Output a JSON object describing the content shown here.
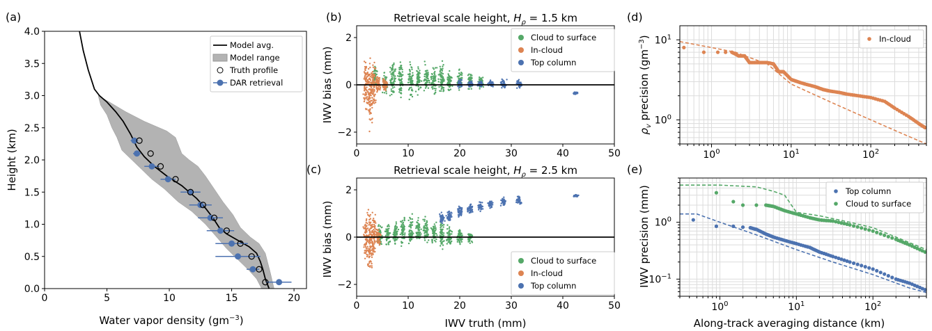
{
  "chart_data": [
    {
      "panel": "(a)",
      "type": "line",
      "title": "",
      "xlabel": "Water vapor density (gm",
      "xlabel_sup": "−3",
      "xlabel_end": ")",
      "ylabel": "Height (km)",
      "xlim": [
        0,
        21
      ],
      "ylim": [
        0,
        4
      ],
      "xticks": [
        0,
        5,
        10,
        15,
        20
      ],
      "yticks": [
        0.0,
        0.5,
        1.0,
        1.5,
        2.0,
        2.5,
        3.0,
        3.5,
        4.0
      ],
      "legend": [
        "Model avg.",
        "Model range",
        "Truth profile",
        "DAR retrieval"
      ],
      "legend_position": "top-right",
      "model_avg": [
        [
          2.8,
          4.0
        ],
        [
          3.1,
          3.7
        ],
        [
          3.5,
          3.4
        ],
        [
          4.0,
          3.1
        ],
        [
          4.4,
          3.0
        ],
        [
          5.0,
          2.9
        ],
        [
          5.7,
          2.75
        ],
        [
          6.3,
          2.6
        ],
        [
          6.9,
          2.4
        ],
        [
          7.4,
          2.2
        ],
        [
          8.0,
          2.05
        ],
        [
          8.8,
          1.9
        ],
        [
          9.8,
          1.75
        ],
        [
          11.0,
          1.6
        ],
        [
          12.2,
          1.4
        ],
        [
          12.9,
          1.25
        ],
        [
          13.5,
          1.1
        ],
        [
          14.0,
          0.95
        ],
        [
          14.6,
          0.85
        ],
        [
          15.5,
          0.75
        ],
        [
          16.4,
          0.65
        ],
        [
          17.0,
          0.55
        ],
        [
          17.3,
          0.42
        ],
        [
          17.5,
          0.3
        ],
        [
          17.7,
          0.15
        ],
        [
          18.0,
          0.0
        ]
      ],
      "model_range_upper": [
        [
          4.3,
          3.0
        ],
        [
          5.2,
          2.9
        ],
        [
          6.5,
          2.75
        ],
        [
          8.0,
          2.6
        ],
        [
          9.8,
          2.45
        ],
        [
          10.5,
          2.35
        ],
        [
          10.8,
          2.2
        ],
        [
          11.0,
          2.1
        ],
        [
          11.6,
          2.0
        ],
        [
          12.3,
          1.9
        ],
        [
          12.9,
          1.75
        ],
        [
          13.6,
          1.55
        ],
        [
          14.3,
          1.35
        ],
        [
          15.1,
          1.15
        ],
        [
          15.7,
          0.95
        ],
        [
          16.5,
          0.8
        ],
        [
          17.2,
          0.7
        ],
        [
          17.7,
          0.55
        ],
        [
          17.9,
          0.4
        ],
        [
          18.1,
          0.25
        ],
        [
          18.4,
          0.0
        ]
      ],
      "model_range_lower": [
        [
          17.4,
          0.0
        ],
        [
          17.0,
          0.15
        ],
        [
          16.4,
          0.28
        ],
        [
          15.5,
          0.45
        ],
        [
          14.6,
          0.62
        ],
        [
          13.8,
          0.8
        ],
        [
          12.9,
          1.0
        ],
        [
          11.8,
          1.2
        ],
        [
          10.7,
          1.35
        ],
        [
          9.6,
          1.55
        ],
        [
          8.6,
          1.7
        ],
        [
          7.8,
          1.85
        ],
        [
          7.0,
          2.0
        ],
        [
          6.2,
          2.15
        ],
        [
          5.8,
          2.35
        ],
        [
          5.4,
          2.5
        ],
        [
          5.0,
          2.7
        ],
        [
          4.5,
          2.85
        ],
        [
          4.3,
          3.0
        ]
      ],
      "truth_profile": [
        [
          7.6,
          2.3
        ],
        [
          8.5,
          2.1
        ],
        [
          9.3,
          1.9
        ],
        [
          10.5,
          1.7
        ],
        [
          11.7,
          1.5
        ],
        [
          12.7,
          1.3
        ],
        [
          13.6,
          1.1
        ],
        [
          14.6,
          0.9
        ],
        [
          15.7,
          0.7
        ],
        [
          16.6,
          0.5
        ],
        [
          17.2,
          0.3
        ],
        [
          17.7,
          0.1
        ]
      ],
      "dar_retrieval": [
        [
          7.2,
          2.3,
          0.3
        ],
        [
          7.4,
          2.1,
          0.3
        ],
        [
          8.6,
          1.9,
          0.6
        ],
        [
          9.9,
          1.7,
          0.6
        ],
        [
          11.7,
          1.5,
          0.8
        ],
        [
          12.5,
          1.3,
          0.9
        ],
        [
          13.3,
          1.1,
          1.0
        ],
        [
          14.1,
          0.9,
          1.1
        ],
        [
          15.0,
          0.7,
          1.3
        ],
        [
          15.5,
          0.5,
          1.8
        ],
        [
          16.7,
          0.3,
          0.5
        ],
        [
          18.8,
          0.1,
          1.0
        ]
      ]
    },
    {
      "panel": "(b)",
      "type": "scatter",
      "title": "Retrieval scale height, ",
      "title_var": "H",
      "title_sub": "ρ",
      "title_end": " = 1.5 km",
      "xlabel": "",
      "ylabel": "IWV bias (mm)",
      "xlim": [
        0,
        50
      ],
      "ylim": [
        -2.5,
        2.5
      ],
      "xticks": [
        0,
        10,
        20,
        30,
        40,
        50
      ],
      "yticks": [
        -2,
        0,
        2
      ],
      "legend_position": "top-right",
      "series": [
        {
          "name": "Cloud to surface",
          "color": "#55a868",
          "clusters": [
            [
              3.5,
              0.3,
              0.5
            ],
            [
              5.5,
              0.1,
              0.5
            ],
            [
              7.0,
              0.3,
              0.9
            ],
            [
              8.5,
              0.2,
              0.8
            ],
            [
              10.5,
              0.2,
              0.8
            ],
            [
              12.0,
              0.2,
              0.6
            ],
            [
              13.5,
              0.3,
              0.7
            ],
            [
              15.0,
              0.2,
              0.7
            ],
            [
              16.5,
              0.25,
              0.8
            ],
            [
              18.0,
              0.2,
              0.5
            ],
            [
              20.0,
              0.2,
              0.5
            ],
            [
              22.0,
              0.15,
              0.4
            ],
            [
              24.0,
              0.1,
              0.35
            ]
          ]
        },
        {
          "name": "In-cloud",
          "color": "#dd8452",
          "clusters": [
            [
              1.8,
              0.0,
              1.2
            ],
            [
              2.6,
              -0.4,
              1.5
            ],
            [
              3.3,
              0.0,
              1.0
            ],
            [
              4.2,
              0.0,
              0.4
            ],
            [
              5.5,
              0.0,
              0.3
            ]
          ]
        },
        {
          "name": "Top column",
          "color": "#4c72b0",
          "clusters": [
            [
              20.0,
              0.05,
              0.2
            ],
            [
              22.0,
              0.05,
              0.15
            ],
            [
              24.0,
              0.05,
              0.15
            ],
            [
              26.0,
              0.05,
              0.15
            ],
            [
              28.5,
              0.05,
              0.2
            ],
            [
              31.5,
              0.05,
              0.25
            ],
            [
              42.5,
              -0.35,
              0.05
            ]
          ]
        }
      ]
    },
    {
      "panel": "(c)",
      "type": "scatter",
      "title": "Retrieval scale height, ",
      "title_var": "H",
      "title_sub": "ρ",
      "title_end": " = 2.5 km",
      "xlabel": "IWV truth (mm)",
      "ylabel": "IWV bias (mm)",
      "xlim": [
        0,
        50
      ],
      "ylim": [
        -2.5,
        2.5
      ],
      "xticks": [
        0,
        10,
        20,
        30,
        40,
        50
      ],
      "yticks": [
        -2,
        0,
        2
      ],
      "legend_position": "bottom-right",
      "series": [
        {
          "name": "Cloud to surface",
          "color": "#55a868",
          "clusters": [
            [
              4.5,
              0.1,
              0.5
            ],
            [
              6.0,
              0.1,
              0.5
            ],
            [
              7.5,
              0.2,
              0.6
            ],
            [
              9.0,
              0.25,
              0.7
            ],
            [
              10.5,
              0.3,
              0.7
            ],
            [
              12.0,
              0.3,
              0.6
            ],
            [
              13.5,
              0.3,
              0.6
            ],
            [
              15.0,
              0.2,
              0.6
            ],
            [
              16.5,
              0.15,
              0.7
            ],
            [
              18.0,
              0.0,
              0.5
            ],
            [
              20.0,
              0.0,
              0.4
            ],
            [
              22.0,
              0.0,
              0.3
            ]
          ]
        },
        {
          "name": "In-cloud",
          "color": "#dd8452",
          "clusters": [
            [
              1.8,
              0.0,
              1.0
            ],
            [
              2.6,
              -0.2,
              1.4
            ],
            [
              3.3,
              0.1,
              1.0
            ],
            [
              4.2,
              0.0,
              0.5
            ]
          ]
        },
        {
          "name": "Top column",
          "color": "#4c72b0",
          "clusters": [
            [
              16.5,
              0.8,
              0.25
            ],
            [
              18.0,
              0.9,
              0.25
            ],
            [
              20.0,
              1.1,
              0.3
            ],
            [
              22.0,
              1.2,
              0.25
            ],
            [
              24.0,
              1.3,
              0.2
            ],
            [
              26.0,
              1.4,
              0.2
            ],
            [
              28.5,
              1.5,
              0.2
            ],
            [
              31.5,
              1.55,
              0.2
            ],
            [
              42.5,
              1.75,
              0.05
            ]
          ]
        }
      ]
    },
    {
      "panel": "(d)",
      "type": "scatter",
      "title": "",
      "xlabel": "",
      "ylabel_prefix": "ρ",
      "ylabel_sub": "v",
      "ylabel": " precision (gm",
      "ylabel_sup": "−3",
      "ylabel_end": ")",
      "xscale": "log",
      "yscale": "log",
      "xlim": [
        0.4,
        500
      ],
      "ylim": [
        0.5,
        15
      ],
      "xticks": [
        1,
        10,
        100
      ],
      "yticks": [
        1,
        10
      ],
      "legend_position": "top-right",
      "series": [
        {
          "name": "In-cloud",
          "color": "#dd8452",
          "points": [
            [
              0.45,
              8.0
            ],
            [
              0.8,
              7.0
            ],
            [
              1.2,
              7.0
            ],
            [
              1.5,
              7.0
            ],
            [
              1.8,
              7.0
            ],
            [
              2.2,
              6.3
            ],
            [
              2.6,
              6.3
            ],
            [
              3.0,
              5.2
            ],
            [
              4.0,
              5.2
            ],
            [
              5.0,
              5.2
            ],
            [
              6.0,
              5.0
            ],
            [
              7.0,
              4.0
            ],
            [
              8.0,
              4.0
            ],
            [
              10.0,
              3.2
            ],
            [
              12.0,
              3.0
            ],
            [
              15.0,
              2.8
            ],
            [
              20.0,
              2.6
            ],
            [
              25.0,
              2.4
            ],
            [
              30.0,
              2.3
            ],
            [
              40.0,
              2.2
            ],
            [
              50.0,
              2.1
            ],
            [
              70.0,
              2.0
            ],
            [
              100.0,
              1.9
            ],
            [
              150.0,
              1.7
            ],
            [
              200.0,
              1.4
            ],
            [
              300.0,
              1.1
            ],
            [
              400.0,
              0.9
            ],
            [
              480.0,
              0.8
            ]
          ],
          "dashed": [
            [
              0.4,
              9.5
            ],
            [
              1.0,
              8.0
            ],
            [
              2.0,
              7.0
            ],
            [
              3.0,
              6.0
            ],
            [
              5.0,
              5.0
            ],
            [
              10.0,
              2.8
            ],
            [
              30.0,
              1.7
            ],
            [
              100.0,
              1.0
            ],
            [
              300.0,
              0.62
            ],
            [
              500.0,
              0.5
            ]
          ]
        }
      ]
    },
    {
      "panel": "(e)",
      "type": "scatter",
      "title": "",
      "xlabel": "Along-track averaging distance (km)",
      "ylabel": "IWV precision (mm)",
      "xscale": "log",
      "yscale": "log",
      "xlim": [
        0.3,
        500
      ],
      "ylim": [
        0.05,
        6
      ],
      "xticks": [
        1,
        10,
        100
      ],
      "yticks": [
        0.1,
        1
      ],
      "legend_position": "top-right",
      "series": [
        {
          "name": "Top column",
          "color": "#4c72b0",
          "points": [
            [
              0.45,
              1.1
            ],
            [
              0.9,
              0.85
            ],
            [
              1.5,
              0.85
            ],
            [
              2.0,
              0.82
            ],
            [
              2.5,
              0.8
            ],
            [
              3.0,
              0.75
            ],
            [
              4.0,
              0.62
            ],
            [
              5.0,
              0.55
            ],
            [
              7.0,
              0.48
            ],
            [
              10.0,
              0.42
            ],
            [
              15.0,
              0.36
            ],
            [
              20.0,
              0.3
            ],
            [
              30.0,
              0.25
            ],
            [
              50.0,
              0.2
            ],
            [
              100.0,
              0.15
            ],
            [
              200.0,
              0.1
            ],
            [
              300.0,
              0.085
            ],
            [
              480.0,
              0.065
            ]
          ],
          "dashed": [
            [
              0.3,
              1.4
            ],
            [
              0.5,
              1.4
            ],
            [
              1.0,
              1.0
            ],
            [
              3.0,
              0.6
            ],
            [
              10.0,
              0.33
            ],
            [
              30.0,
              0.2
            ],
            [
              100.0,
              0.12
            ],
            [
              300.0,
              0.07
            ],
            [
              500.0,
              0.058
            ]
          ]
        },
        {
          "name": "Cloud to surface",
          "color": "#55a868",
          "points": [
            [
              0.9,
              3.3
            ],
            [
              1.5,
              2.3
            ],
            [
              2.0,
              2.0
            ],
            [
              3.0,
              2.0
            ],
            [
              4.0,
              2.0
            ],
            [
              5.0,
              1.9
            ],
            [
              7.0,
              1.6
            ],
            [
              10.0,
              1.4
            ],
            [
              15.0,
              1.2
            ],
            [
              20.0,
              1.1
            ],
            [
              30.0,
              1.05
            ],
            [
              50.0,
              0.9
            ],
            [
              100.0,
              0.7
            ],
            [
              200.0,
              0.5
            ],
            [
              300.0,
              0.4
            ],
            [
              480.0,
              0.3
            ]
          ],
          "dashed": [
            [
              0.3,
              4.5
            ],
            [
              1.0,
              4.5
            ],
            [
              3.0,
              4.2
            ],
            [
              5.0,
              3.5
            ],
            [
              7.0,
              3.0
            ],
            [
              10.0,
              1.5
            ],
            [
              20.0,
              1.3
            ],
            [
              50.0,
              1.0
            ],
            [
              100.0,
              0.8
            ],
            [
              200.0,
              0.55
            ],
            [
              500.0,
              0.33
            ]
          ]
        }
      ]
    },
    {
      "panel_labels": [
        "(a)",
        "(b)",
        "(c)",
        "(d)",
        "(e)"
      ]
    }
  ]
}
